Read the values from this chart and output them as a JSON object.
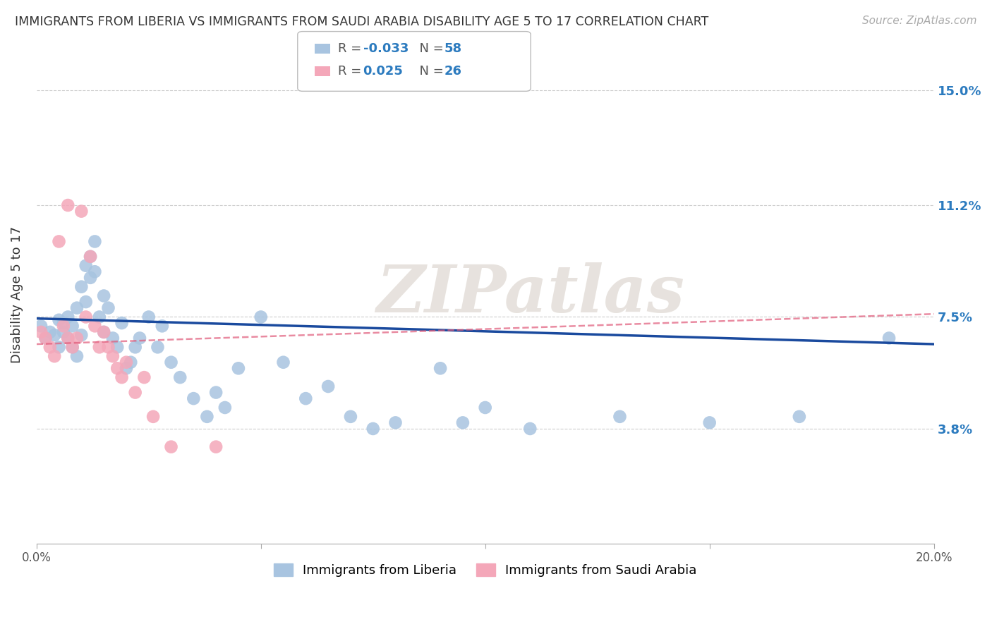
{
  "title": "IMMIGRANTS FROM LIBERIA VS IMMIGRANTS FROM SAUDI ARABIA DISABILITY AGE 5 TO 17 CORRELATION CHART",
  "source": "Source: ZipAtlas.com",
  "ylabel": "Disability Age 5 to 17",
  "xlim": [
    0.0,
    0.2
  ],
  "ylim": [
    0.0,
    0.165
  ],
  "xticks": [
    0.0,
    0.05,
    0.1,
    0.15,
    0.2
  ],
  "xticklabels": [
    "0.0%",
    "",
    "",
    "",
    "20.0%"
  ],
  "ytick_positions": [
    0.038,
    0.075,
    0.112,
    0.15
  ],
  "ytick_labels": [
    "3.8%",
    "7.5%",
    "11.2%",
    "15.0%"
  ],
  "legend_label1": "Immigrants from Liberia",
  "legend_label2": "Immigrants from Saudi Arabia",
  "blue_color": "#a8c4e0",
  "pink_color": "#f4a7b9",
  "blue_line_color": "#1a4a9e",
  "pink_line_color": "#e05a7a",
  "watermark": "ZIPatlas",
  "blue_x": [
    0.001,
    0.002,
    0.003,
    0.004,
    0.005,
    0.005,
    0.006,
    0.006,
    0.007,
    0.007,
    0.008,
    0.008,
    0.009,
    0.009,
    0.01,
    0.01,
    0.011,
    0.011,
    0.012,
    0.012,
    0.013,
    0.013,
    0.014,
    0.015,
    0.015,
    0.016,
    0.017,
    0.018,
    0.019,
    0.02,
    0.021,
    0.022,
    0.023,
    0.025,
    0.027,
    0.028,
    0.03,
    0.032,
    0.035,
    0.038,
    0.04,
    0.042,
    0.045,
    0.05,
    0.055,
    0.06,
    0.065,
    0.07,
    0.075,
    0.08,
    0.09,
    0.095,
    0.1,
    0.11,
    0.13,
    0.15,
    0.17,
    0.19
  ],
  "blue_y": [
    0.072,
    0.068,
    0.07,
    0.069,
    0.065,
    0.074,
    0.07,
    0.073,
    0.068,
    0.075,
    0.065,
    0.072,
    0.062,
    0.078,
    0.069,
    0.085,
    0.08,
    0.092,
    0.088,
    0.095,
    0.09,
    0.1,
    0.075,
    0.07,
    0.082,
    0.078,
    0.068,
    0.065,
    0.073,
    0.058,
    0.06,
    0.065,
    0.068,
    0.075,
    0.065,
    0.072,
    0.06,
    0.055,
    0.048,
    0.042,
    0.05,
    0.045,
    0.058,
    0.075,
    0.06,
    0.048,
    0.052,
    0.042,
    0.038,
    0.04,
    0.058,
    0.04,
    0.045,
    0.038,
    0.042,
    0.04,
    0.042,
    0.068
  ],
  "pink_x": [
    0.001,
    0.002,
    0.003,
    0.004,
    0.005,
    0.006,
    0.007,
    0.007,
    0.008,
    0.009,
    0.01,
    0.011,
    0.012,
    0.013,
    0.014,
    0.015,
    0.016,
    0.017,
    0.018,
    0.019,
    0.02,
    0.022,
    0.024,
    0.026,
    0.03,
    0.04
  ],
  "pink_y": [
    0.07,
    0.068,
    0.065,
    0.062,
    0.1,
    0.072,
    0.068,
    0.112,
    0.065,
    0.068,
    0.11,
    0.075,
    0.095,
    0.072,
    0.065,
    0.07,
    0.065,
    0.062,
    0.058,
    0.055,
    0.06,
    0.05,
    0.055,
    0.042,
    0.032,
    0.032
  ],
  "blue_trend_x": [
    0.0,
    0.2
  ],
  "blue_trend_y": [
    0.0745,
    0.066
  ],
  "pink_trend_x": [
    0.0,
    0.1
  ],
  "pink_trend_y": [
    0.066,
    0.075
  ]
}
